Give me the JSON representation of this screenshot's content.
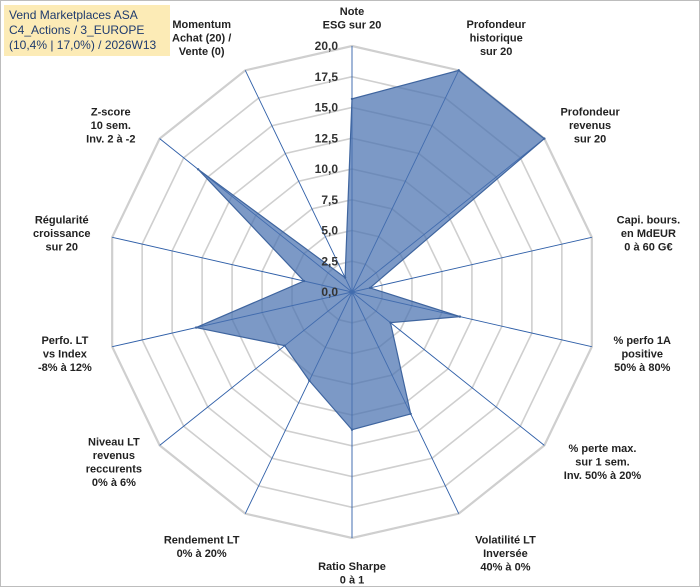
{
  "title_box": {
    "line1": "Vend Marketplaces ASA",
    "line2": "C4_Actions / 3_EUROPE",
    "line3": "(10,4% | 17,0%) / 2026W13"
  },
  "chart_data": {
    "type": "radar",
    "rmin": 0,
    "rmax": 20,
    "tick_values": [
      0,
      2.5,
      5,
      7.5,
      10,
      12.5,
      15,
      17.5,
      20
    ],
    "tick_labels": [
      "0,0",
      "2,5",
      "5,0",
      "7,5",
      "10,0",
      "12,5",
      "15,0",
      "17,5",
      "20,0"
    ],
    "series_color": "#4a72b0",
    "axes": [
      {
        "label": [
          "Note",
          "ESG sur 20"
        ],
        "value": 15.7
      },
      {
        "label": [
          "Profondeur",
          "historique",
          "sur 20"
        ],
        "value": 20.0
      },
      {
        "label": [
          "Profondeur",
          "revenus",
          "sur 20"
        ],
        "value": 20.0
      },
      {
        "label": [
          "Capi. bours.",
          "en MdEUR",
          "0 à 60 G€"
        ],
        "value": 1.5
      },
      {
        "label": [
          "% perfo 1A",
          "positive",
          "50% à 80%"
        ],
        "value": 9.0
      },
      {
        "label": [
          "% perte max.",
          "sur 1 sem.",
          "Inv. 50% à 20%"
        ],
        "value": 4.0
      },
      {
        "label": [
          "Volatilité LT",
          "Inversée",
          "40% à 0%"
        ],
        "value": 11.0
      },
      {
        "label": [
          "Ratio Sharpe",
          "0 à 1"
        ],
        "value": 11.2
      },
      {
        "label": [
          "Rendement LT",
          "0% à 20%"
        ],
        "value": 8.0
      },
      {
        "label": [
          "Niveau LT",
          "revenus",
          "reccurents",
          "0% à 6%"
        ],
        "value": 7.0
      },
      {
        "label": [
          "Perfo. LT",
          "vs Index",
          "-8% à 12%"
        ],
        "value": 13.0
      },
      {
        "label": [
          "Régularité",
          "croissance",
          "sur 20"
        ],
        "value": 4.0
      },
      {
        "label": [
          "Z-score",
          "10 sem.",
          "Inv. 2 à -2"
        ],
        "value": 16.0
      },
      {
        "label": [
          "Momentum",
          "Achat (20) /",
          "Vente (0)"
        ],
        "value": 1.3
      }
    ]
  }
}
